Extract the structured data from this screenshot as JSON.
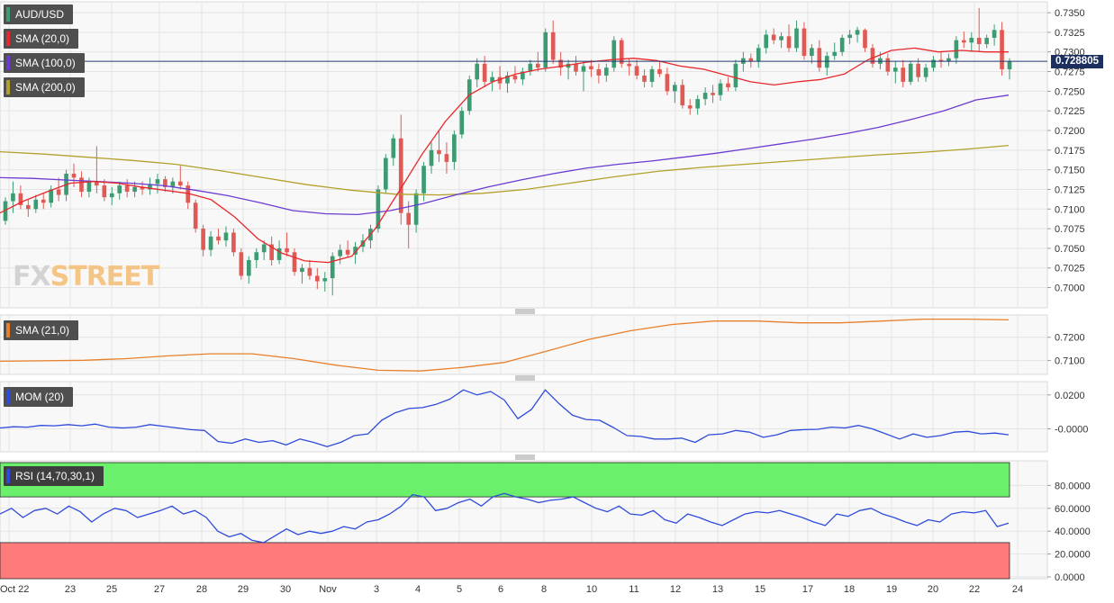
{
  "colors": {
    "background": "#ffffff",
    "panel_bg": "#f8f8f8",
    "grid": "#e4e4e4",
    "bull": "#3d9b72",
    "bear": "#e05a55",
    "sma20": "#e8282c",
    "sma100": "#6b3bd1",
    "sma200": "#b3a02c",
    "sma21": "#e87f2a",
    "mom": "#2e4bdc",
    "rsi": "#2e4bdc",
    "rsi_over": "#6af06a",
    "rsi_under": "#ff7b7b",
    "price_line": "#22386e",
    "price_tag": "#1c2f5e"
  },
  "legend": {
    "symbol": "AUD/USD",
    "sma20": "SMA (20,0)",
    "sma100": "SMA (100,0)",
    "sma200": "SMA (200,0)",
    "sma21": "SMA (21,0)",
    "mom": "MOM (20)",
    "rsi": "RSI (14,70,30,1)"
  },
  "watermark": {
    "part1": "FX",
    "part2": "STREET"
  },
  "price_tag": "0.728805",
  "x_ticks": [
    "Oct 22",
    "23",
    "25",
    "27",
    "28",
    "29",
    "30",
    "Nov",
    "3",
    "4",
    "5",
    "6",
    "8",
    "10",
    "11",
    "12",
    "13",
    "15",
    "17",
    "18",
    "19",
    "20",
    "22",
    "24"
  ],
  "chart_data": [
    {
      "type": "candlestick",
      "title": "AUD/USD",
      "y_ticks": [
        "0.7350",
        "0.7325",
        "0.7300",
        "0.7275",
        "0.7250",
        "0.7225",
        "0.7200",
        "0.7175",
        "0.7150",
        "0.7125",
        "0.7100",
        "0.7075",
        "0.7050",
        "0.7025",
        "0.7000"
      ],
      "ylim": [
        0.6988,
        0.7357
      ],
      "last_price": 0.728805,
      "ohlc": [
        [
          0.7085,
          0.7115,
          0.708,
          0.711
        ],
        [
          0.711,
          0.7135,
          0.7095,
          0.712
        ],
        [
          0.712,
          0.713,
          0.71,
          0.7105
        ],
        [
          0.7105,
          0.7112,
          0.709,
          0.71
        ],
        [
          0.71,
          0.7118,
          0.7095,
          0.7112
        ],
        [
          0.7112,
          0.712,
          0.71,
          0.7108
        ],
        [
          0.7108,
          0.713,
          0.7102,
          0.7125
        ],
        [
          0.7125,
          0.714,
          0.711,
          0.7118
        ],
        [
          0.7118,
          0.715,
          0.711,
          0.7145
        ],
        [
          0.7145,
          0.7158,
          0.7128,
          0.714
        ],
        [
          0.714,
          0.7148,
          0.7115,
          0.7122
        ],
        [
          0.7122,
          0.714,
          0.7115,
          0.7135
        ],
        [
          0.7135,
          0.718,
          0.712,
          0.713
        ],
        [
          0.713,
          0.7138,
          0.711,
          0.7115
        ],
        [
          0.7115,
          0.7128,
          0.7105,
          0.712
        ],
        [
          0.712,
          0.7135,
          0.7112,
          0.713
        ],
        [
          0.713,
          0.7138,
          0.7115,
          0.7122
        ],
        [
          0.7122,
          0.7135,
          0.7115,
          0.7128
        ],
        [
          0.7128,
          0.7135,
          0.7118,
          0.7125
        ],
        [
          0.7125,
          0.714,
          0.7118,
          0.7132
        ],
        [
          0.7132,
          0.7145,
          0.712,
          0.7138
        ],
        [
          0.7138,
          0.7142,
          0.7122,
          0.7128
        ],
        [
          0.7128,
          0.714,
          0.712,
          0.7135
        ],
        [
          0.7135,
          0.7155,
          0.7125,
          0.713
        ],
        [
          0.713,
          0.7135,
          0.71,
          0.7108
        ],
        [
          0.7108,
          0.7112,
          0.707,
          0.7075
        ],
        [
          0.7075,
          0.708,
          0.704,
          0.7048
        ],
        [
          0.7048,
          0.7072,
          0.704,
          0.7065
        ],
        [
          0.7065,
          0.7075,
          0.7055,
          0.706
        ],
        [
          0.706,
          0.7078,
          0.7052,
          0.707
        ],
        [
          0.707,
          0.7075,
          0.704,
          0.7045
        ],
        [
          0.7045,
          0.705,
          0.701,
          0.7015
        ],
        [
          0.7015,
          0.704,
          0.7005,
          0.7035
        ],
        [
          0.7035,
          0.705,
          0.7025,
          0.7045
        ],
        [
          0.7045,
          0.706,
          0.7035,
          0.7055
        ],
        [
          0.7055,
          0.7065,
          0.7028,
          0.7035
        ],
        [
          0.7035,
          0.706,
          0.703,
          0.705
        ],
        [
          0.705,
          0.707,
          0.704,
          0.7045
        ],
        [
          0.7045,
          0.705,
          0.7015,
          0.702
        ],
        [
          0.702,
          0.703,
          0.7005,
          0.7025
        ],
        [
          0.7025,
          0.7035,
          0.701,
          0.7015
        ],
        [
          0.7015,
          0.7025,
          0.6998,
          0.7008
        ],
        [
          0.7008,
          0.702,
          0.6995,
          0.7012
        ],
        [
          0.7012,
          0.7045,
          0.699,
          0.704
        ],
        [
          0.704,
          0.7055,
          0.703,
          0.7048
        ],
        [
          0.7048,
          0.706,
          0.7038,
          0.7042
        ],
        [
          0.7042,
          0.7058,
          0.703,
          0.7052
        ],
        [
          0.7052,
          0.7068,
          0.7045,
          0.706
        ],
        [
          0.706,
          0.708,
          0.705,
          0.7075
        ],
        [
          0.7075,
          0.713,
          0.707,
          0.7125
        ],
        [
          0.7125,
          0.717,
          0.712,
          0.7165
        ],
        [
          0.7165,
          0.7195,
          0.7155,
          0.719
        ],
        [
          0.719,
          0.722,
          0.708,
          0.7095
        ],
        [
          0.7095,
          0.711,
          0.705,
          0.708
        ],
        [
          0.708,
          0.7125,
          0.707,
          0.712
        ],
        [
          0.712,
          0.716,
          0.711,
          0.7155
        ],
        [
          0.7155,
          0.7185,
          0.7145,
          0.7175
        ],
        [
          0.7175,
          0.72,
          0.716,
          0.717
        ],
        [
          0.717,
          0.7185,
          0.7145,
          0.716
        ],
        [
          0.716,
          0.72,
          0.715,
          0.7195
        ],
        [
          0.7195,
          0.723,
          0.719,
          0.7225
        ],
        [
          0.7225,
          0.727,
          0.722,
          0.7265
        ],
        [
          0.7265,
          0.7292,
          0.7255,
          0.7285
        ],
        [
          0.7285,
          0.7295,
          0.7255,
          0.7262
        ],
        [
          0.7262,
          0.7275,
          0.725,
          0.7268
        ],
        [
          0.7268,
          0.7282,
          0.7252,
          0.726
        ],
        [
          0.726,
          0.7275,
          0.7248,
          0.727
        ],
        [
          0.727,
          0.7282,
          0.726,
          0.7265
        ],
        [
          0.7265,
          0.728,
          0.7258,
          0.7275
        ],
        [
          0.7275,
          0.729,
          0.727,
          0.7285
        ],
        [
          0.7285,
          0.73,
          0.7275,
          0.728
        ],
        [
          0.728,
          0.733,
          0.7275,
          0.7325
        ],
        [
          0.7325,
          0.734,
          0.7285,
          0.729
        ],
        [
          0.729,
          0.73,
          0.727,
          0.728
        ],
        [
          0.728,
          0.729,
          0.7265,
          0.7285
        ],
        [
          0.7285,
          0.7295,
          0.727,
          0.7275
        ],
        [
          0.7275,
          0.7288,
          0.725,
          0.7282
        ],
        [
          0.7282,
          0.729,
          0.7268,
          0.7278
        ],
        [
          0.7278,
          0.7285,
          0.726,
          0.727
        ],
        [
          0.727,
          0.7285,
          0.7262,
          0.728
        ],
        [
          0.728,
          0.732,
          0.7275,
          0.7315
        ],
        [
          0.7315,
          0.7318,
          0.728,
          0.7285
        ],
        [
          0.7285,
          0.7292,
          0.727,
          0.7282
        ],
        [
          0.7282,
          0.729,
          0.7265,
          0.727
        ],
        [
          0.727,
          0.7278,
          0.7255,
          0.7262
        ],
        [
          0.7262,
          0.7282,
          0.7255,
          0.7278
        ],
        [
          0.7278,
          0.7288,
          0.7268,
          0.7272
        ],
        [
          0.7272,
          0.728,
          0.7245,
          0.725
        ],
        [
          0.725,
          0.7262,
          0.7235,
          0.7258
        ],
        [
          0.7258,
          0.7265,
          0.7228,
          0.7232
        ],
        [
          0.7232,
          0.724,
          0.722,
          0.7228
        ],
        [
          0.7228,
          0.7245,
          0.722,
          0.724
        ],
        [
          0.724,
          0.7255,
          0.7232,
          0.7248
        ],
        [
          0.7248,
          0.7258,
          0.7235,
          0.7245
        ],
        [
          0.7245,
          0.7265,
          0.7238,
          0.726
        ],
        [
          0.726,
          0.7268,
          0.725,
          0.7255
        ],
        [
          0.7255,
          0.729,
          0.725,
          0.7285
        ],
        [
          0.7285,
          0.73,
          0.7275,
          0.7292
        ],
        [
          0.7292,
          0.7298,
          0.728,
          0.7288
        ],
        [
          0.7288,
          0.731,
          0.728,
          0.7305
        ],
        [
          0.7305,
          0.7328,
          0.7298,
          0.7322
        ],
        [
          0.7322,
          0.733,
          0.731,
          0.7315
        ],
        [
          0.7315,
          0.7325,
          0.7305,
          0.732
        ],
        [
          0.732,
          0.7335,
          0.73,
          0.7305
        ],
        [
          0.7305,
          0.734,
          0.73,
          0.733
        ],
        [
          0.733,
          0.7338,
          0.729,
          0.7295
        ],
        [
          0.7295,
          0.731,
          0.7285,
          0.7305
        ],
        [
          0.7305,
          0.7315,
          0.7275,
          0.728
        ],
        [
          0.728,
          0.73,
          0.727,
          0.7295
        ],
        [
          0.7295,
          0.7312,
          0.729,
          0.73
        ],
        [
          0.73,
          0.7322,
          0.7295,
          0.7318
        ],
        [
          0.7318,
          0.7328,
          0.731,
          0.7322
        ],
        [
          0.7322,
          0.7332,
          0.7312,
          0.7328
        ],
        [
          0.7328,
          0.733,
          0.73,
          0.7305
        ],
        [
          0.7305,
          0.731,
          0.728,
          0.7285
        ],
        [
          0.7285,
          0.73,
          0.7278,
          0.7292
        ],
        [
          0.7292,
          0.7298,
          0.727,
          0.7275
        ],
        [
          0.7275,
          0.7288,
          0.726,
          0.728
        ],
        [
          0.728,
          0.729,
          0.7255,
          0.7262
        ],
        [
          0.7262,
          0.7288,
          0.7258,
          0.7285
        ],
        [
          0.7285,
          0.7292,
          0.7262,
          0.7268
        ],
        [
          0.7268,
          0.7285,
          0.7262,
          0.728
        ],
        [
          0.728,
          0.7295,
          0.7275,
          0.729
        ],
        [
          0.729,
          0.73,
          0.728,
          0.7288
        ],
        [
          0.7288,
          0.7298,
          0.7282,
          0.7292
        ],
        [
          0.7292,
          0.732,
          0.7285,
          0.7315
        ],
        [
          0.7315,
          0.7326,
          0.7305,
          0.7312
        ],
        [
          0.7312,
          0.7325,
          0.73,
          0.7318
        ],
        [
          0.7318,
          0.7356,
          0.73,
          0.731
        ],
        [
          0.731,
          0.7322,
          0.7305,
          0.7318
        ],
        [
          0.7318,
          0.7335,
          0.7308,
          0.7328
        ],
        [
          0.7328,
          0.7338,
          0.727,
          0.7278
        ],
        [
          0.7278,
          0.7292,
          0.7265,
          0.7288
        ]
      ],
      "sma20": [
        0.7095,
        0.711,
        0.7122,
        0.7133,
        0.7135,
        0.7133,
        0.7128,
        0.7124,
        0.712,
        0.7112,
        0.709,
        0.7062,
        0.7044,
        0.7034,
        0.7032,
        0.704,
        0.7075,
        0.7122,
        0.717,
        0.7212,
        0.7245,
        0.7262,
        0.7272,
        0.7278,
        0.7282,
        0.7287,
        0.729,
        0.7292,
        0.7289,
        0.7282,
        0.7278,
        0.727,
        0.7262,
        0.7258,
        0.7262,
        0.7265,
        0.7272,
        0.729,
        0.7302,
        0.7305,
        0.73,
        0.7302,
        0.73,
        0.73
      ],
      "sma100": [
        0.714,
        0.7139,
        0.7137,
        0.7135,
        0.7133,
        0.713,
        0.7124,
        0.7117,
        0.7108,
        0.7098,
        0.7094,
        0.7093,
        0.7098,
        0.7107,
        0.7118,
        0.7128,
        0.7137,
        0.7145,
        0.7152,
        0.7157,
        0.7161,
        0.7166,
        0.7171,
        0.7177,
        0.7183,
        0.7189,
        0.7196,
        0.7204,
        0.7214,
        0.7225,
        0.7239,
        0.7245
      ],
      "sma200": [
        0.7173,
        0.717,
        0.7166,
        0.7162,
        0.7157,
        0.7149,
        0.714,
        0.7131,
        0.7124,
        0.7119,
        0.7118,
        0.712,
        0.7125,
        0.7133,
        0.7141,
        0.7148,
        0.7153,
        0.7157,
        0.7161,
        0.7165,
        0.7169,
        0.7172,
        0.7176,
        0.7181
      ]
    },
    {
      "type": "line",
      "title": "SMA (21,0)",
      "y_ticks": [
        "0.7200",
        "0.7100"
      ],
      "ylim": [
        0.7052,
        0.7288
      ],
      "series": [
        {
          "name": "SMA (21,0)",
          "values": [
            0.7097,
            0.7099,
            0.7101,
            0.7108,
            0.712,
            0.7129,
            0.7129,
            0.7108,
            0.708,
            0.7058,
            0.7055,
            0.707,
            0.7092,
            0.714,
            0.719,
            0.7228,
            0.7255,
            0.727,
            0.727,
            0.7262,
            0.7262,
            0.727,
            0.7278,
            0.7278,
            0.7275
          ]
        }
      ]
    },
    {
      "type": "line",
      "title": "MOM (20)",
      "y_ticks": [
        "0.0200",
        "-0.0000"
      ],
      "ylim": [
        -0.0125,
        0.0268
      ],
      "series": [
        {
          "name": "MOM (20)",
          "values": [
            0.0005,
            0.0012,
            0.001,
            0.002,
            0.0018,
            0.0025,
            0.0018,
            0.0028,
            0.001,
            0.0005,
            0.001,
            0.0025,
            0.0015,
            0.0005,
            -0.0005,
            -0.001,
            -0.0075,
            -0.0085,
            -0.006,
            -0.008,
            -0.007,
            -0.0095,
            -0.006,
            -0.008,
            -0.0105,
            -0.008,
            -0.004,
            -0.003,
            0.005,
            0.0095,
            0.012,
            0.0125,
            0.0145,
            0.0175,
            0.023,
            0.02,
            0.022,
            0.017,
            0.006,
            0.0115,
            0.023,
            0.015,
            0.008,
            0.0055,
            0.005,
            0.0008,
            -0.004,
            -0.0045,
            -0.006,
            -0.006,
            -0.0055,
            -0.008,
            -0.0035,
            -0.003,
            -0.001,
            -0.002,
            -0.005,
            -0.0035,
            -0.001,
            -0.0005,
            -0.0003,
            0.001,
            0.0005,
            0.002,
            0.0,
            -0.003,
            -0.006,
            -0.003,
            -0.005,
            -0.004,
            -0.002,
            -0.0015,
            -0.003,
            -0.0025,
            -0.0035
          ]
        }
      ]
    },
    {
      "type": "line",
      "title": "RSI (14,70,30,1)",
      "y_ticks": [
        "80.0000",
        "60.0000",
        "40.0000",
        "20.0000",
        "0.0000"
      ],
      "ylim": [
        0,
        100
      ],
      "overbought": 70,
      "oversold": 30,
      "series": [
        {
          "name": "RSI (14,70,30,1)",
          "values": [
            55,
            60,
            52,
            58,
            60,
            55,
            62,
            57,
            48,
            55,
            60,
            58,
            52,
            55,
            58,
            62,
            55,
            58,
            52,
            40,
            35,
            38,
            32,
            30,
            36,
            42,
            37,
            40,
            38,
            40,
            44,
            42,
            48,
            50,
            55,
            62,
            72,
            70,
            58,
            60,
            65,
            68,
            62,
            70,
            73,
            70,
            68,
            65,
            67,
            68,
            70,
            65,
            60,
            57,
            62,
            55,
            54,
            58,
            50,
            47,
            55,
            52,
            48,
            45,
            50,
            55,
            57,
            56,
            58,
            55,
            52,
            48,
            45,
            55,
            53,
            58,
            60,
            55,
            52,
            48,
            45,
            50,
            48,
            55,
            57,
            56,
            58,
            44,
            47
          ]
        }
      ]
    }
  ]
}
